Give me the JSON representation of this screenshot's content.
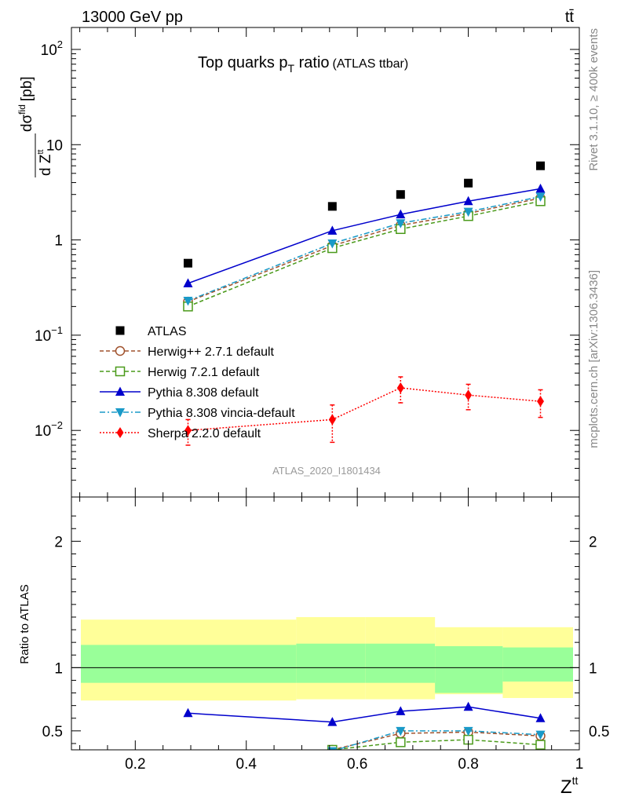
{
  "header": {
    "energy_label": "13000 GeV pp",
    "process_label": "tt̄"
  },
  "chart_data": [
    {
      "type": "line",
      "panel": "main",
      "title": "Top quarks p",
      "title_sub": "T",
      "title_tail": " ratio",
      "title_note": "(ATLAS ttbar)",
      "ylabel_num": "dσ",
      "ylabel_num_sup": "fid",
      "ylabel_den": "d Z",
      "ylabel_den_sup": "tt",
      "ylabel_unit": "[pb]",
      "yscale": "log",
      "ylim": [
        0.002,
        170
      ],
      "xlim": [
        0.085,
        1.0
      ],
      "y_ticks": [
        {
          "v": 0.01,
          "base": "10",
          "exp": "−2"
        },
        {
          "v": 0.1,
          "base": "10",
          "exp": "−1"
        },
        {
          "v": 1,
          "base": "1",
          "exp": ""
        },
        {
          "v": 10,
          "base": "10",
          "exp": ""
        },
        {
          "v": 100,
          "base": "10",
          "exp": "2"
        }
      ],
      "analysis_id": "ATLAS_2020_I1801434",
      "x": [
        0.295,
        0.555,
        0.678,
        0.8,
        0.93
      ],
      "series": [
        {
          "name": "ATLAS",
          "marker": "square-filled",
          "color": "#000000",
          "line": "none",
          "values": [
            0.57,
            2.25,
            3.0,
            3.95,
            6.0
          ]
        },
        {
          "name": "Herwig++ 2.7.1 default",
          "marker": "circle-open",
          "color": "#a0522d",
          "line": "dashed",
          "values": [
            0.225,
            0.87,
            1.42,
            1.9,
            2.75
          ]
        },
        {
          "name": "Herwig 7.2.1 default",
          "marker": "square-open",
          "color": "#4a9a1a",
          "line": "dashed",
          "values": [
            0.2,
            0.82,
            1.3,
            1.78,
            2.55
          ]
        },
        {
          "name": "Pythia 8.308 default",
          "marker": "triangle-up",
          "color": "#0000cc",
          "line": "solid",
          "values": [
            0.35,
            1.25,
            1.85,
            2.55,
            3.45
          ]
        },
        {
          "name": "Pythia 8.308 vincia-default",
          "marker": "triangle-down",
          "color": "#1a9ac8",
          "line": "dashdot",
          "values": [
            0.23,
            0.92,
            1.5,
            1.98,
            2.85
          ]
        },
        {
          "name": "Sherpa 2.2.0 default",
          "marker": "diamond",
          "color": "#ff0000",
          "line": "dotted",
          "values": [
            0.01,
            0.013,
            0.028,
            0.0235,
            0.0202
          ],
          "err_lo": [
            0.003,
            0.0055,
            0.0085,
            0.007,
            0.0065
          ],
          "err_hi": [
            0.003,
            0.0055,
            0.0085,
            0.007,
            0.0065
          ]
        }
      ]
    },
    {
      "type": "line",
      "panel": "ratio",
      "ylabel": "Ratio to ATLAS",
      "xlabel": "Z",
      "xlabel_sup": "tt",
      "ylim": [
        0.35,
        2.35
      ],
      "xlim": [
        0.085,
        1.0
      ],
      "x_ticks": [
        "0.2",
        "0.4",
        "0.6",
        "0.8",
        "1"
      ],
      "x_tick_values": [
        0.2,
        0.4,
        0.6,
        0.8,
        1.0
      ],
      "y_ticks": [
        "0.5",
        "1",
        "2"
      ],
      "y_tick_values": [
        0.5,
        1,
        2
      ],
      "bands": [
        {
          "x0": 0.1,
          "x1": 0.49,
          "stat": [
            0.88,
            1.18
          ],
          "total": [
            0.74,
            1.38
          ]
        },
        {
          "x0": 0.49,
          "x1": 0.615,
          "stat": [
            0.88,
            1.19
          ],
          "total": [
            0.75,
            1.4
          ]
        },
        {
          "x0": 0.615,
          "x1": 0.74,
          "stat": [
            0.88,
            1.19
          ],
          "total": [
            0.75,
            1.4
          ]
        },
        {
          "x0": 0.74,
          "x1": 0.862,
          "stat": [
            0.8,
            1.17
          ],
          "total": [
            0.79,
            1.32
          ]
        },
        {
          "x0": 0.862,
          "x1": 1.0,
          "stat": [
            0.89,
            1.16
          ],
          "total": [
            0.76,
            1.32
          ]
        }
      ],
      "series": [
        {
          "name": "Herwig++ 2.7.1 default",
          "marker": "circle-open",
          "color": "#a0522d",
          "line": "dashed",
          "values": [
            0.23,
            0.35,
            0.48,
            0.49,
            0.46
          ]
        },
        {
          "name": "Herwig 7.2.1 default",
          "marker": "square-open",
          "color": "#4a9a1a",
          "line": "dashed",
          "values": [
            0.22,
            0.35,
            0.41,
            0.43,
            0.39
          ]
        },
        {
          "name": "Pythia 8.308 default",
          "marker": "triangle-up",
          "color": "#0000cc",
          "line": "solid",
          "values": [
            0.64,
            0.57,
            0.655,
            0.69,
            0.6
          ],
          "err_lo": [
            0.025,
            0.03,
            0.025,
            0.02,
            0.0
          ],
          "err_hi": [
            0.025,
            0.03,
            0.025,
            0.02,
            0.0
          ]
        },
        {
          "name": "Pythia 8.308 vincia-default",
          "marker": "triangle-down",
          "color": "#1a9ac8",
          "line": "dashdot",
          "values": [
            0.23,
            0.34,
            0.5,
            0.5,
            0.47
          ]
        }
      ]
    }
  ],
  "side_labels": {
    "rivet": "Rivet 3.1.10, ≥ 400k events",
    "mcplots": "mcplots.cern.ch [arXiv:1306.3436]"
  }
}
